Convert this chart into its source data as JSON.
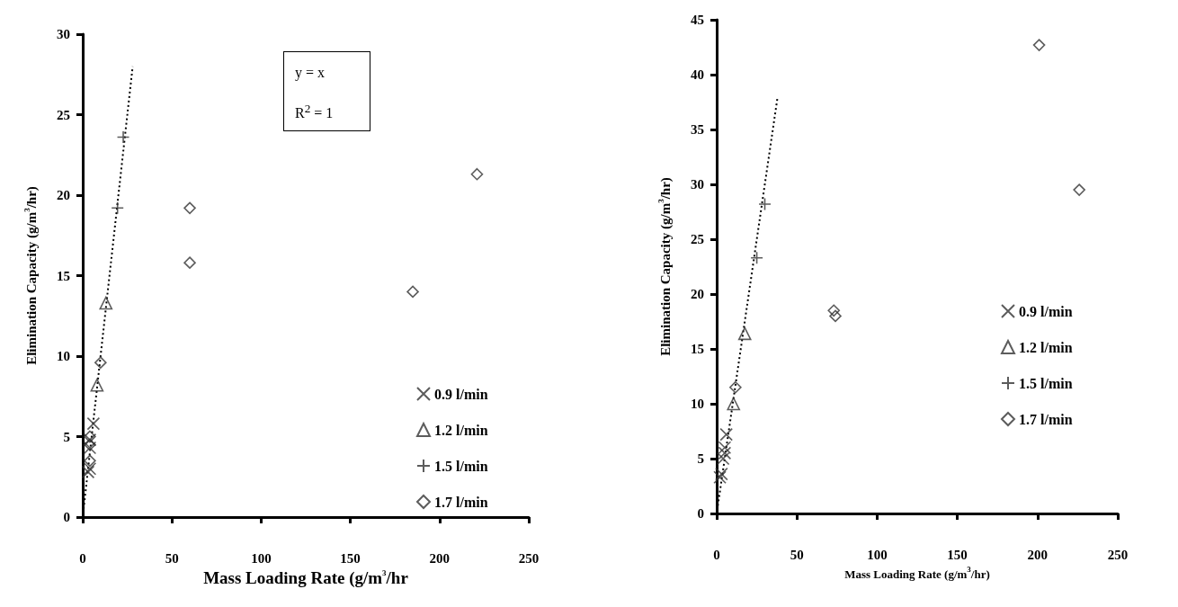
{
  "chart_data": [
    {
      "type": "scatter",
      "xlabel": "Mass Loading Rate (g/m$^{3}$/hr",
      "ylabel": "Elimination Capacity (g/m$^{3}$/hr)",
      "xlim": [
        0,
        250
      ],
      "xticks": [
        0,
        50,
        100,
        150,
        200,
        250
      ],
      "ylim": [
        0,
        30
      ],
      "yticks": [
        0,
        5,
        10,
        15,
        20,
        25,
        30
      ],
      "grid": false,
      "legend": "right",
      "annotations": [
        "y = x",
        "R$^{2}$ = 1"
      ],
      "series": [
        {
          "name": "0.9 l/min",
          "color": "#333333",
          "marker": "cross",
          "x": [
            6,
            4,
            4,
            3,
            4
          ],
          "values": [
            5.8,
            4.3,
            3,
            2.8,
            4.8
          ]
        },
        {
          "name": "1.2 l/min",
          "color": "#333333",
          "marker": "triangle",
          "x": [
            13,
            8
          ],
          "values": [
            13.3,
            8.2
          ]
        },
        {
          "name": "1.5 l/min",
          "color": "#333333",
          "marker": "plus",
          "x": [
            22.7,
            19.5
          ],
          "values": [
            23.6,
            19.2
          ]
        },
        {
          "name": "1.7 l/min",
          "color": "#333333",
          "marker": "diamond",
          "x": [
            10,
            4,
            4,
            4,
            60,
            60,
            185,
            221
          ],
          "values": [
            9.6,
            3.5,
            4.5,
            5,
            19.2,
            15.8,
            14,
            21.3
          ]
        },
        {
          "type": "line",
          "color": "#000000",
          "line_style": "dotted",
          "marker": "none",
          "x": [
            0.5,
            28
          ],
          "values": [
            0.5,
            28
          ]
        }
      ]
    },
    {
      "type": "scatter",
      "xlabel": "Mass Loading Rate (g/m$^{3}$/hr)",
      "ylabel": "Elimination Capacity (g/m$^{3}$/hr)",
      "xlim": [
        0,
        250
      ],
      "xticks": [
        0,
        50,
        100,
        150,
        200,
        250
      ],
      "ylim": [
        0,
        45
      ],
      "yticks": [
        0,
        5,
        10,
        15,
        20,
        25,
        30,
        35,
        40,
        45
      ],
      "grid": false,
      "legend": "right",
      "series": [
        {
          "name": "0.9 l/min",
          "color": "#333333",
          "marker": "cross",
          "x": [
            6,
            5,
            5,
            4,
            3,
            2
          ],
          "values": [
            7.2,
            6,
            5.5,
            5,
            3.6,
            3.3
          ]
        },
        {
          "name": "1.2 l/min",
          "color": "#333333",
          "marker": "triangle",
          "x": [
            17.5,
            10.5
          ],
          "values": [
            16.4,
            10
          ]
        },
        {
          "name": "1.5 l/min",
          "color": "#333333",
          "marker": "plus",
          "x": [
            30,
            25
          ],
          "values": [
            28.2,
            23.3
          ]
        },
        {
          "name": "1.7 l/min",
          "color": "#333333",
          "marker": "diamond",
          "x": [
            11.7,
            73,
            74,
            201,
            226
          ],
          "values": [
            11.5,
            18.5,
            18,
            42.7,
            29.5
          ]
        },
        {
          "type": "line",
          "color": "#000000",
          "line_style": "dotted",
          "marker": "none",
          "x": [
            0.3,
            38
          ],
          "values": [
            0.3,
            38
          ]
        }
      ]
    }
  ]
}
